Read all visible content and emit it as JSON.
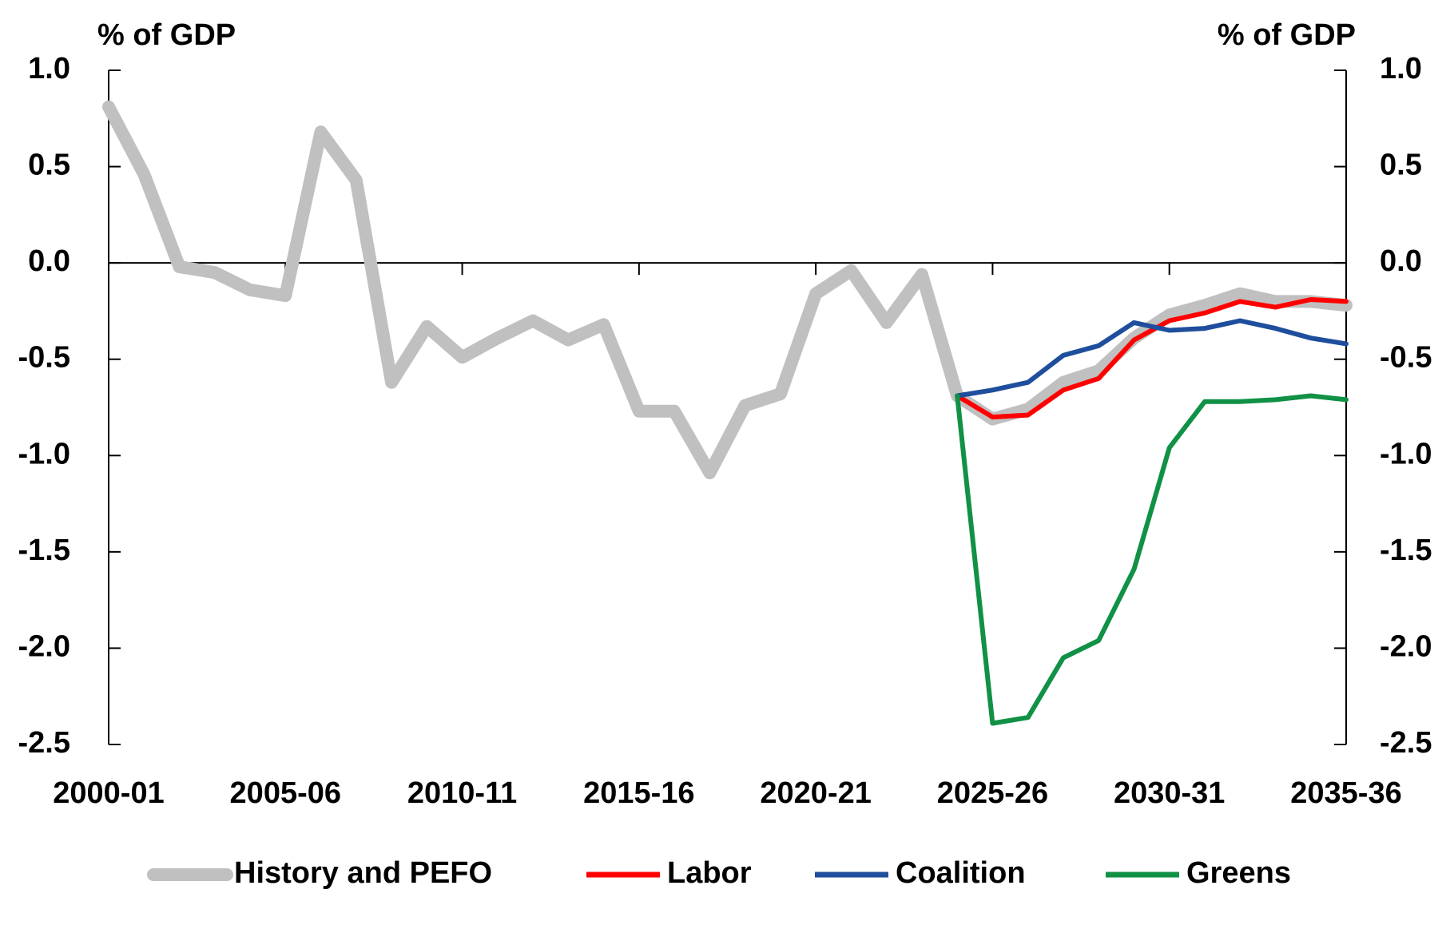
{
  "chart_data": {
    "type": "line",
    "y_label": "% of GDP",
    "y2_label": "% of GDP",
    "categories": [
      "2000-01",
      null,
      null,
      null,
      null,
      "2005-06",
      null,
      null,
      null,
      null,
      "2010-11",
      null,
      null,
      null,
      null,
      "2015-16",
      null,
      null,
      null,
      null,
      "2020-21",
      null,
      null,
      null,
      null,
      "2025-26",
      null,
      null,
      null,
      null,
      "2030-31",
      null,
      null,
      null,
      null,
      "2035-36"
    ],
    "series": [
      {
        "name": "History and PEFO",
        "color": "#c0c0c0",
        "values": [
          0.81,
          0.46,
          -0.02,
          -0.05,
          -0.14,
          -0.17,
          0.68,
          0.43,
          -0.62,
          -0.33,
          -0.49,
          -0.39,
          -0.3,
          -0.4,
          -0.32,
          -0.77,
          -0.77,
          -1.09,
          -0.74,
          -0.68,
          -0.16,
          -0.04,
          -0.31,
          -0.06,
          -0.69,
          -0.81,
          -0.76,
          -0.62,
          -0.56,
          -0.39,
          -0.27,
          -0.22,
          -0.16,
          -0.2,
          -0.2,
          -0.22
        ]
      },
      {
        "name": "Labor",
        "color": "#ff0000",
        "values": [
          null,
          null,
          null,
          null,
          null,
          null,
          null,
          null,
          null,
          null,
          null,
          null,
          null,
          null,
          null,
          null,
          null,
          null,
          null,
          null,
          null,
          null,
          null,
          null,
          -0.69,
          -0.8,
          -0.79,
          -0.66,
          -0.6,
          -0.4,
          -0.3,
          -0.26,
          -0.2,
          -0.23,
          -0.19,
          -0.2
        ]
      },
      {
        "name": "Coalition",
        "color": "#1f4e9c",
        "values": [
          null,
          null,
          null,
          null,
          null,
          null,
          null,
          null,
          null,
          null,
          null,
          null,
          null,
          null,
          null,
          null,
          null,
          null,
          null,
          null,
          null,
          null,
          null,
          null,
          -0.69,
          -0.66,
          -0.62,
          -0.48,
          -0.43,
          -0.31,
          -0.35,
          -0.34,
          -0.3,
          -0.34,
          -0.39,
          -0.42
        ]
      },
      {
        "name": "Greens",
        "color": "#119146",
        "values": [
          null,
          null,
          null,
          null,
          null,
          null,
          null,
          null,
          null,
          null,
          null,
          null,
          null,
          null,
          null,
          null,
          null,
          null,
          null,
          null,
          null,
          null,
          null,
          null,
          -0.69,
          -2.39,
          -2.36,
          -2.05,
          -1.96,
          -1.59,
          -0.96,
          -0.72,
          -0.72,
          -0.71,
          -0.69,
          -0.71
        ]
      }
    ],
    "ylim": [
      -2.5,
      1.0
    ],
    "yticks": [
      {
        "value": 1.0,
        "label": "1.0"
      },
      0.5,
      {
        "value": 0,
        "label": "0.0"
      },
      -0.5,
      {
        "value": -1.0,
        "label": "-1.0"
      },
      -1.5,
      {
        "value": -2.0,
        "label": "-2.0"
      },
      -2.5
    ],
    "y2lim": [
      -2.5,
      1.0
    ],
    "y2ticks": [
      {
        "value": 1.0,
        "label": "1.0"
      },
      0.5,
      {
        "value": 0,
        "label": "0.0"
      },
      -0.5,
      {
        "value": -1.0,
        "label": "-1.0"
      },
      -1.5,
      {
        "value": -2.0,
        "label": "-2.0"
      },
      -2.5
    ],
    "legend": "bottom"
  }
}
